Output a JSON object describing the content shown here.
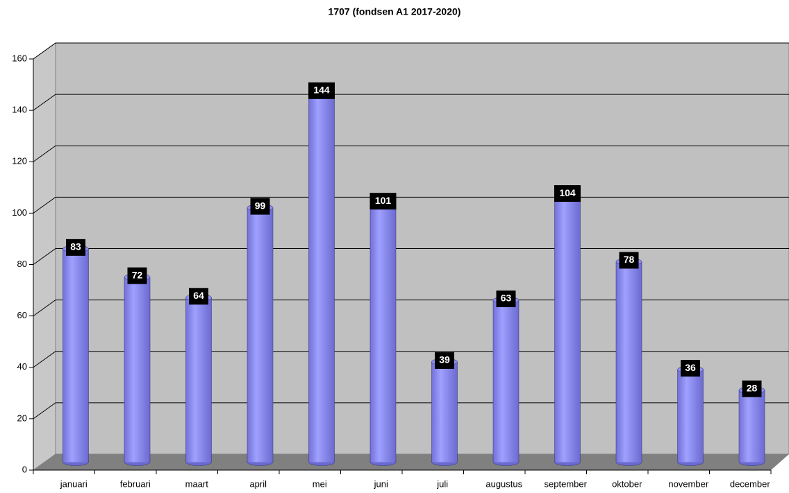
{
  "chart_data": {
    "type": "bar",
    "title": "1707 (fondsen A1 2017-2020)",
    "categories": [
      "januari",
      "februari",
      "maart",
      "april",
      "mei",
      "juni",
      "juli",
      "augustus",
      "september",
      "oktober",
      "november",
      "december"
    ],
    "values": [
      83,
      72,
      64,
      99,
      144,
      101,
      39,
      63,
      104,
      78,
      36,
      28
    ],
    "color": "#8f8ff5",
    "ylim": [
      0,
      160
    ],
    "yticks": [
      0,
      20,
      40,
      60,
      80,
      100,
      120,
      140,
      160
    ],
    "grid": true
  }
}
